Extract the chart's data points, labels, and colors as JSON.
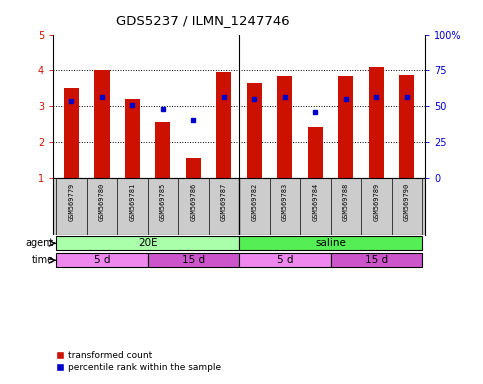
{
  "title": "GDS5237 / ILMN_1247746",
  "samples": [
    "GSM569779",
    "GSM569780",
    "GSM569781",
    "GSM569785",
    "GSM569786",
    "GSM569787",
    "GSM569782",
    "GSM569783",
    "GSM569784",
    "GSM569788",
    "GSM569789",
    "GSM569790"
  ],
  "red_values": [
    3.5,
    4.0,
    3.2,
    2.55,
    1.55,
    3.97,
    3.65,
    3.85,
    2.42,
    3.85,
    4.1,
    3.88
  ],
  "blue_values": [
    3.15,
    3.27,
    3.05,
    2.93,
    2.62,
    3.27,
    3.2,
    3.25,
    2.85,
    3.2,
    3.27,
    3.25
  ],
  "ylim_left": [
    1,
    5
  ],
  "ylim_right": [
    0,
    100
  ],
  "yticks_left": [
    1,
    2,
    3,
    4,
    5
  ],
  "yticks_right": [
    0,
    25,
    50,
    75,
    100
  ],
  "ytick_labels_right": [
    "0",
    "25",
    "50",
    "75",
    "100%"
  ],
  "bar_color": "#cc1100",
  "dot_color": "#0000cc",
  "bar_bottom": 1.0,
  "n_samples": 12,
  "group_split": 6,
  "agent_groups": [
    {
      "label": "20E",
      "start": 0,
      "end": 6,
      "color": "#aaffaa"
    },
    {
      "label": "saline",
      "start": 6,
      "end": 12,
      "color": "#55ee55"
    }
  ],
  "time_groups": [
    {
      "label": "5 d",
      "start": 0,
      "end": 3,
      "color": "#ee88ee"
    },
    {
      "label": "15 d",
      "start": 3,
      "end": 6,
      "color": "#cc55cc"
    },
    {
      "label": "5 d",
      "start": 6,
      "end": 9,
      "color": "#ee88ee"
    },
    {
      "label": "15 d",
      "start": 9,
      "end": 12,
      "color": "#cc55cc"
    }
  ],
  "agent_label": "agent",
  "time_label": "time",
  "legend_red": "transformed count",
  "legend_blue": "percentile rank within the sample",
  "bar_width": 0.5,
  "background_color": "#ffffff",
  "sample_area_color": "#cccccc",
  "grid_dotted_at": [
    2,
    3,
    4
  ]
}
